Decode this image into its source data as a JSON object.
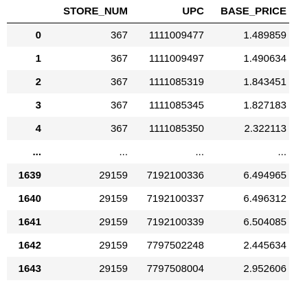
{
  "table": {
    "columns": [
      "",
      "STORE_NUM",
      "UPC",
      "BASE_PRICE"
    ],
    "rows": [
      {
        "index": "0",
        "store_num": "367",
        "upc": "1111009477",
        "base_price": "1.489859"
      },
      {
        "index": "1",
        "store_num": "367",
        "upc": "1111009497",
        "base_price": "1.490634"
      },
      {
        "index": "2",
        "store_num": "367",
        "upc": "1111085319",
        "base_price": "1.843451"
      },
      {
        "index": "3",
        "store_num": "367",
        "upc": "1111085345",
        "base_price": "1.827183"
      },
      {
        "index": "4",
        "store_num": "367",
        "upc": "1111085350",
        "base_price": "2.322113"
      },
      {
        "index": "...",
        "store_num": "...",
        "upc": "...",
        "base_price": "..."
      },
      {
        "index": "1639",
        "store_num": "29159",
        "upc": "7192100336",
        "base_price": "6.494965"
      },
      {
        "index": "1640",
        "store_num": "29159",
        "upc": "7192100337",
        "base_price": "6.496312"
      },
      {
        "index": "1641",
        "store_num": "29159",
        "upc": "7192100339",
        "base_price": "6.504085"
      },
      {
        "index": "1642",
        "store_num": "29159",
        "upc": "7797502248",
        "base_price": "2.445634"
      },
      {
        "index": "1643",
        "store_num": "29159",
        "upc": "7797508004",
        "base_price": "2.952606"
      }
    ]
  }
}
